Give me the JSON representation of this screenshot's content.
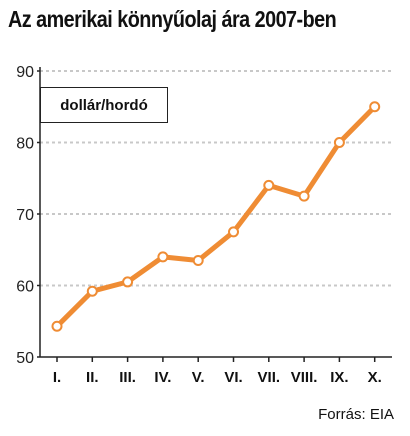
{
  "chart_data": {
    "type": "line",
    "title": "Az amerikai könnyűolaj ára 2007-ben",
    "ylabel": "dollár/hordó",
    "xlabel": "",
    "categories": [
      "I.",
      "II.",
      "III.",
      "IV.",
      "V.",
      "VI.",
      "VII.",
      "VIII.",
      "IX.",
      "X."
    ],
    "series": [
      {
        "values": [
          54.3,
          59.2,
          60.5,
          64.0,
          63.5,
          67.5,
          74.0,
          72.5,
          80.0,
          85.0
        ]
      }
    ],
    "ylim": [
      50,
      90
    ],
    "yticks": [
      50,
      60,
      70,
      80,
      90
    ],
    "grid": true,
    "source": "Forrás: EIA",
    "colors": {
      "line": "#ef8c34",
      "marker_fill": "#ffffff",
      "grid": "#c8c8c8",
      "axis": "#222222"
    }
  }
}
